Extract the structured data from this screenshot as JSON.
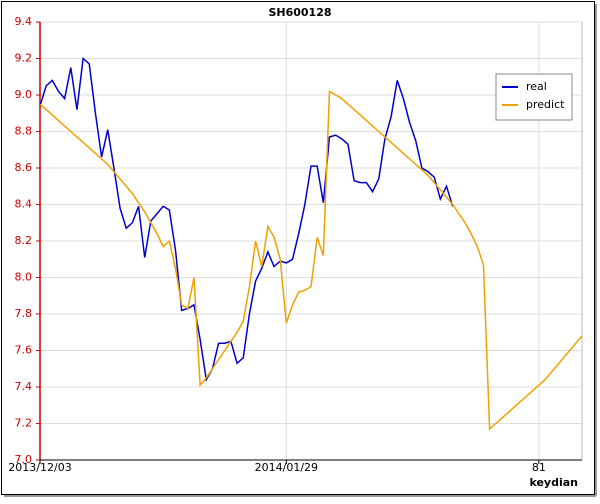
{
  "chart_data": {
    "type": "line",
    "title": "SH600128",
    "xlabel": "keydian",
    "x": [
      0,
      1,
      2,
      3,
      4,
      5,
      6,
      7,
      8,
      9,
      10,
      11,
      12,
      13,
      14,
      15,
      16,
      17,
      18,
      19,
      20,
      21,
      22,
      23,
      24,
      25,
      26,
      27,
      28,
      29,
      30,
      31,
      32,
      33,
      34,
      35,
      36,
      37,
      38,
      39,
      40,
      41,
      42,
      43,
      44,
      45,
      46,
      47,
      48,
      49,
      50,
      51,
      52,
      53,
      54,
      55,
      56,
      57,
      58,
      59,
      60,
      61,
      62,
      63,
      64,
      65,
      66,
      67,
      68,
      69,
      70,
      71,
      72,
      73,
      74,
      75,
      76,
      77,
      78,
      79,
      80,
      81,
      82,
      83,
      84,
      85,
      86,
      87,
      88
    ],
    "series": [
      {
        "name": "real",
        "color": "#0000cc",
        "values": [
          8.94,
          9.05,
          9.08,
          9.02,
          8.98,
          9.15,
          8.92,
          9.2,
          9.17,
          8.9,
          8.66,
          8.81,
          8.6,
          8.38,
          8.27,
          8.3,
          8.39,
          8.11,
          8.31,
          8.35,
          8.39,
          8.37,
          8.15,
          7.82,
          7.83,
          7.85,
          7.66,
          7.44,
          7.5,
          7.64,
          7.64,
          7.65,
          7.53,
          7.56,
          7.8,
          7.98,
          8.05,
          8.14,
          8.06,
          8.09,
          8.08,
          8.1,
          8.24,
          8.4,
          8.61,
          8.61,
          8.41,
          8.77,
          8.78,
          8.76,
          8.73,
          8.53,
          8.52,
          8.52,
          8.47,
          8.54,
          8.76,
          8.88,
          9.08,
          8.98,
          8.85,
          8.75,
          8.6,
          8.58,
          8.55,
          8.43,
          8.5,
          8.39,
          null,
          null,
          null,
          null,
          null,
          null,
          null,
          null,
          null,
          null,
          null,
          null,
          null,
          null,
          null,
          null,
          null,
          null,
          null,
          null,
          null
        ]
      },
      {
        "name": "predict",
        "color": "#f0a000",
        "values": [
          8.95,
          8.92,
          8.89,
          8.86,
          8.83,
          8.8,
          8.77,
          8.74,
          8.71,
          8.68,
          8.65,
          8.62,
          8.58,
          8.54,
          8.5,
          8.46,
          8.41,
          8.36,
          8.3,
          8.24,
          8.17,
          8.2,
          8.05,
          7.85,
          7.83,
          8.0,
          7.41,
          7.45,
          7.5,
          7.55,
          7.6,
          7.65,
          7.7,
          7.76,
          7.95,
          8.2,
          8.06,
          8.28,
          8.22,
          8.1,
          7.75,
          7.85,
          7.92,
          7.93,
          7.95,
          8.22,
          8.12,
          9.02,
          9.0,
          8.98,
          8.95,
          8.92,
          8.89,
          8.86,
          8.83,
          8.8,
          8.77,
          8.74,
          8.71,
          8.68,
          8.65,
          8.62,
          8.59,
          8.56,
          8.52,
          8.48,
          8.44,
          8.4,
          8.35,
          8.3,
          8.24,
          8.17,
          8.07,
          7.17,
          7.2,
          7.23,
          7.26,
          7.29,
          7.32,
          7.35,
          7.38,
          7.41,
          7.44,
          7.48,
          7.52,
          7.56,
          7.6,
          7.64,
          7.68
        ]
      }
    ],
    "xlim": [
      0,
      88
    ],
    "ylim": [
      7.0,
      9.4
    ],
    "xticks": [
      {
        "value": 0,
        "label": "2013/12/03"
      },
      {
        "value": 40,
        "label": "2014/01/29"
      },
      81
    ],
    "yticks": [
      {
        "value": 7,
        "label": "7.0"
      },
      7.2,
      7.4,
      7.6,
      7.8,
      {
        "value": 8,
        "label": "8.0"
      },
      8.2,
      8.4,
      8.6,
      8.8,
      {
        "value": 9,
        "label": "9.0"
      },
      9.2,
      9.4
    ],
    "grid": true,
    "legend": "upper right",
    "yaxis_color": "#cc0000"
  }
}
